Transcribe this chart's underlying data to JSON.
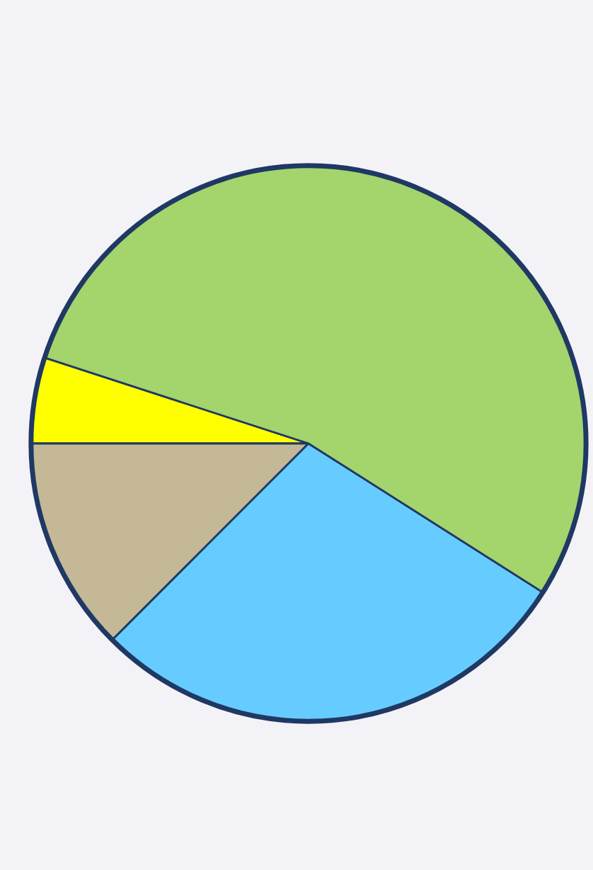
{
  "chart_data": {
    "type": "pie",
    "categories": [
      null,
      null,
      null,
      null
    ],
    "values": [
      5,
      12.5,
      28.5,
      54
    ],
    "colors": [
      "#ffff00",
      "#c4b896",
      "#66ccff",
      "#a4d46c"
    ]
  }
}
